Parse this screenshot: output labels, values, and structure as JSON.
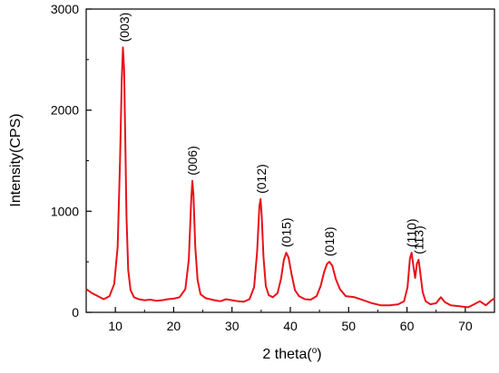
{
  "chart_data": {
    "type": "line",
    "title": "",
    "xlabel_prefix": "2 theta(",
    "xlabel_sup": "o",
    "xlabel_suffix": ")",
    "ylabel": "Intensity(CPS)",
    "xlim": [
      5,
      75
    ],
    "ylim": [
      0,
      3000
    ],
    "xticks": [
      10,
      20,
      30,
      40,
      50,
      60,
      70
    ],
    "yticks": [
      0,
      1000,
      2000,
      3000
    ],
    "grid": false,
    "legend": "none",
    "line_color": "#e8121a",
    "series": [
      {
        "x": [
          5,
          6,
          7,
          8,
          9,
          9.8,
          10.4,
          10.8,
          11.1,
          11.3,
          11.5,
          11.7,
          11.9,
          12.2,
          12.6,
          13.2,
          14,
          15,
          16,
          17,
          18,
          19,
          20,
          21,
          22,
          22.6,
          23,
          23.2,
          23.4,
          23.7,
          24.1,
          24.6,
          25.5,
          27,
          28,
          29,
          30,
          31,
          32,
          33,
          33.8,
          34.3,
          34.7,
          34.9,
          35.1,
          35.4,
          35.8,
          36.3,
          37,
          37.8,
          38.4,
          38.9,
          39.3,
          39.7,
          40.2,
          40.8,
          41.5,
          42.5,
          43.5,
          44.5,
          45.2,
          45.8,
          46.3,
          46.7,
          47.2,
          47.8,
          48.5,
          49.5,
          51,
          52.5,
          54,
          55.5,
          57,
          58.5,
          59.5,
          60.1,
          60.5,
          60.8,
          61.1,
          61.4,
          61.7,
          62.0,
          62.3,
          62.7,
          63.2,
          64,
          65,
          65.8,
          66.5,
          67.5,
          69,
          70.5,
          71.5,
          72.5,
          73.5,
          74.3,
          75
        ],
        "y": [
          230,
          190,
          160,
          130,
          160,
          280,
          650,
          1500,
          2300,
          2620,
          2400,
          1700,
          950,
          420,
          220,
          150,
          130,
          120,
          125,
          115,
          120,
          130,
          135,
          150,
          230,
          520,
          1100,
          1300,
          1150,
          650,
          320,
          180,
          140,
          120,
          110,
          130,
          120,
          110,
          105,
          130,
          250,
          600,
          1050,
          1120,
          950,
          550,
          260,
          170,
          150,
          190,
          330,
          520,
          590,
          540,
          380,
          220,
          160,
          130,
          125,
          160,
          260,
          400,
          480,
          500,
          460,
          330,
          230,
          160,
          150,
          120,
          90,
          70,
          70,
          80,
          110,
          250,
          530,
          590,
          460,
          340,
          480,
          520,
          380,
          200,
          110,
          80,
          90,
          150,
          100,
          70,
          60,
          50,
          80,
          110,
          70,
          110,
          140
        ]
      }
    ],
    "annotations": [
      {
        "text": "(003)",
        "x": 11.5,
        "y": 2620,
        "rotate": true
      },
      {
        "text": "(006)",
        "x": 23.2,
        "y": 1300,
        "rotate": true
      },
      {
        "text": "(012)",
        "x": 35.0,
        "y": 1120,
        "rotate": true
      },
      {
        "text": "(015)",
        "x": 39.3,
        "y": 590,
        "rotate": true
      },
      {
        "text": "(018)",
        "x": 46.7,
        "y": 500,
        "rotate": true
      },
      {
        "text": "(110)",
        "x": 60.8,
        "y": 590,
        "rotate": true
      },
      {
        "text": "(113)",
        "x": 62.0,
        "y": 520,
        "rotate": true
      }
    ]
  }
}
